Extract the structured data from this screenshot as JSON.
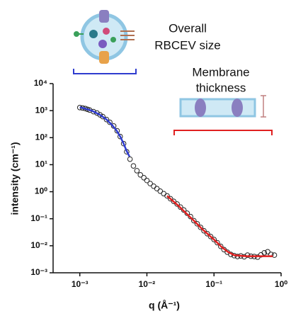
{
  "chart_data": {
    "type": "scatter",
    "x_label": "q (Å⁻¹)",
    "y_label": "intensity (cm⁻¹)",
    "annotations": [
      "Overall",
      "RBCEV size",
      "Membrane",
      "thickness"
    ],
    "xlog": true,
    "ylog": true,
    "xlim": [
      0.0004,
      1
    ],
    "ylim": [
      0.001,
      10000
    ],
    "xticks": [
      {
        "value": 0.001,
        "label": "10⁻³"
      },
      {
        "value": 0.01,
        "label": "10⁻²"
      },
      {
        "value": 0.1,
        "label": "10⁻¹"
      },
      {
        "value": 1,
        "label": "10⁰"
      }
    ],
    "yticks": [
      {
        "value": 10000,
        "label": "10⁴"
      },
      {
        "value": 1000,
        "label": "10³"
      },
      {
        "value": 100,
        "label": "10²"
      },
      {
        "value": 10,
        "label": "10¹"
      },
      {
        "value": 1,
        "label": "10⁰"
      },
      {
        "value": 0.1,
        "label": "10⁻¹"
      },
      {
        "value": 0.01,
        "label": "10⁻²"
      },
      {
        "value": 0.001,
        "label": "10⁻³"
      }
    ],
    "series": [
      {
        "style": "points",
        "color": "#222222",
        "x": [
          0.001,
          0.0011,
          0.0012,
          0.0013,
          0.0014,
          0.0016,
          0.0018,
          0.002,
          0.0022,
          0.0025,
          0.0028,
          0.0032,
          0.0036,
          0.004,
          0.0045,
          0.005,
          0.0056,
          0.0063,
          0.0071,
          0.008,
          0.009,
          0.01,
          0.0112,
          0.0126,
          0.0141,
          0.0158,
          0.0178,
          0.02,
          0.0224,
          0.0251,
          0.0282,
          0.0316,
          0.0355,
          0.0398,
          0.0447,
          0.0501,
          0.0562,
          0.0631,
          0.0708,
          0.0794,
          0.0891,
          0.1,
          0.112,
          0.126,
          0.141,
          0.158,
          0.178,
          0.2,
          0.224,
          0.251,
          0.282,
          0.316,
          0.355,
          0.398,
          0.447,
          0.501,
          0.562,
          0.631,
          0.708,
          0.794
        ],
        "values": [
          1300,
          1250,
          1200,
          1120,
          1050,
          920,
          820,
          700,
          600,
          470,
          370,
          270,
          180,
          110,
          60,
          30,
          16,
          9,
          6,
          4.2,
          3.3,
          2.6,
          2.0,
          1.6,
          1.3,
          1.05,
          0.85,
          0.7,
          0.55,
          0.44,
          0.35,
          0.27,
          0.21,
          0.16,
          0.12,
          0.085,
          0.065,
          0.048,
          0.036,
          0.028,
          0.022,
          0.017,
          0.013,
          0.0095,
          0.0072,
          0.0058,
          0.0048,
          0.0043,
          0.004,
          0.0042,
          0.0039,
          0.0045,
          0.0041,
          0.004,
          0.0038,
          0.0046,
          0.0055,
          0.006,
          0.0048,
          0.0045
        ]
      },
      {
        "style": "line",
        "color": "#2f3ccf",
        "x": [
          0.001,
          0.0015,
          0.002,
          0.0025,
          0.003,
          0.0035,
          0.004,
          0.0045,
          0.005,
          0.0055
        ],
        "values": [
          1350,
          1000,
          700,
          470,
          300,
          190,
          110,
          60,
          32,
          20
        ]
      },
      {
        "style": "line",
        "color": "#e02020",
        "x": [
          0.02,
          0.03,
          0.05,
          0.07,
          0.1,
          0.13,
          0.16,
          0.2,
          0.3,
          0.5,
          0.75
        ],
        "values": [
          0.7,
          0.29,
          0.085,
          0.037,
          0.017,
          0.009,
          0.006,
          0.0045,
          0.0041,
          0.0041,
          0.0041
        ]
      }
    ]
  }
}
